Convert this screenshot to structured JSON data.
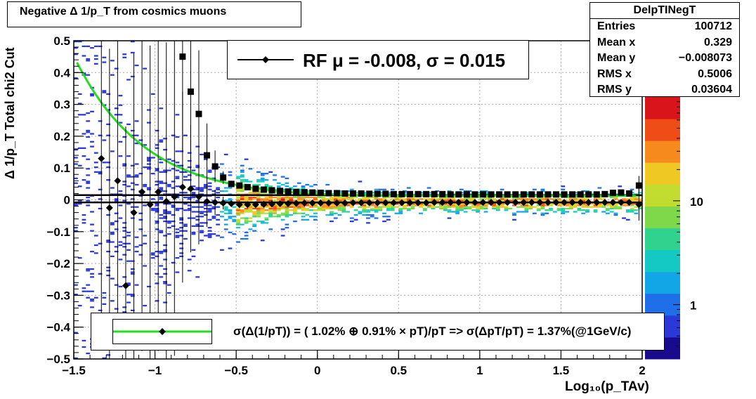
{
  "title_box": {
    "title": "Negative Δ 1/p_T  from cosmics muons"
  },
  "stats": {
    "name": "DelpTINegT",
    "rows": [
      {
        "label": "Entries",
        "value": "100712"
      },
      {
        "label": "Mean x",
        "value": "0.329"
      },
      {
        "label": "Mean y",
        "value": "−0.008073"
      },
      {
        "label": "RMS x",
        "value": "0.5006"
      },
      {
        "label": "RMS y",
        "value": "0.03604"
      }
    ]
  },
  "legend_top": {
    "text": "RF μ = -0.008, σ =   0.015"
  },
  "legend_bottom": {
    "text": "σ(Δ(1/pT)) = ( 1.02% ⊕  0.91% × pT)/pT => σ(ΔpT/pT) =  1.37%(@1GeV/c)"
  },
  "axes": {
    "xlabel": "Log₁₀(p_TAv)",
    "ylabel": "Δ 1/p_T  Total chi2 Cut",
    "x_ticks": [
      "−1.5",
      "−1",
      "−0.5",
      "0",
      "0.5",
      "1",
      "1.5",
      "2"
    ],
    "y_ticks": [
      "−0.5",
      "−0.4",
      "−0.3",
      "−0.2",
      "−0.1",
      "0",
      "0.1",
      "0.2",
      "0.3",
      "0.4",
      "0.5"
    ],
    "z_ticks": [
      "1",
      "10"
    ]
  },
  "colors": {
    "fit_curve": "#22dd22",
    "markers": "#000000",
    "legend_line": "#22dd22"
  },
  "chart_data": {
    "type": "heatmap",
    "xlim": [
      -1.5,
      2.0
    ],
    "ylim": [
      -0.5,
      0.5
    ],
    "zscale": "log",
    "z_range": [
      0.3,
      100
    ],
    "grid": true,
    "legend_placement": "top-center and bottom-center",
    "series": [
      {
        "name": "RF μ = -0.008, σ =   0.015",
        "kind": "points",
        "x": [
          -1.33,
          -1.28,
          -1.23,
          -1.18,
          -1.13,
          -1.08,
          -1.03,
          -0.98,
          -0.93,
          -0.88,
          -0.83,
          -0.78,
          -0.73,
          -0.68,
          -0.63,
          -0.58,
          -0.53,
          -0.48,
          -0.43,
          -0.38,
          -0.33,
          -0.28,
          -0.23,
          -0.18,
          -0.13,
          -0.08,
          -0.03,
          0.02,
          0.07,
          0.12,
          0.17,
          0.22,
          0.27,
          0.32,
          0.37,
          0.42,
          0.47,
          0.52,
          0.57,
          0.62,
          0.67,
          0.72,
          0.77,
          0.82,
          0.87,
          0.92,
          0.97,
          1.02,
          1.07,
          1.12,
          1.17,
          1.22,
          1.27,
          1.32,
          1.37,
          1.42,
          1.47,
          1.52,
          1.57,
          1.62,
          1.67,
          1.72,
          1.77,
          1.82,
          1.87,
          1.92,
          1.98
        ],
        "y": [
          0.13,
          -0.025,
          0.06,
          -0.27,
          -0.04,
          0.025,
          -0.015,
          0.025,
          -0.005,
          0.01,
          0.04,
          0.035,
          0.01,
          -0.005,
          -0.008,
          -0.01,
          -0.012,
          -0.015,
          -0.015,
          -0.015,
          -0.014,
          -0.013,
          -0.012,
          -0.012,
          -0.011,
          -0.01,
          -0.01,
          -0.01,
          -0.01,
          -0.01,
          -0.01,
          -0.009,
          -0.009,
          -0.009,
          -0.009,
          -0.009,
          -0.009,
          -0.009,
          -0.009,
          -0.009,
          -0.009,
          -0.008,
          -0.008,
          -0.008,
          -0.008,
          -0.008,
          -0.008,
          -0.008,
          -0.008,
          -0.008,
          -0.008,
          -0.008,
          -0.008,
          -0.008,
          -0.008,
          -0.008,
          -0.008,
          -0.008,
          -0.008,
          -0.008,
          -0.008,
          -0.008,
          -0.008,
          -0.008,
          -0.008,
          -0.008,
          -0.015
        ],
        "yerr": [
          0.5,
          0.5,
          0.5,
          0.5,
          0.5,
          0.5,
          0.5,
          0.5,
          0.5,
          0.5,
          0.3,
          0.2,
          0.15,
          0.08,
          0.04,
          0.02,
          0.01,
          0.008,
          0.006,
          0.005,
          0.004,
          0.003,
          0.003,
          0.002,
          0.002,
          0.002,
          0.002,
          0.002,
          0.002,
          0.002,
          0.002,
          0.002,
          0.002,
          0.002,
          0.002,
          0.002,
          0.002,
          0.002,
          0.002,
          0.002,
          0.002,
          0.002,
          0.002,
          0.002,
          0.002,
          0.002,
          0.002,
          0.002,
          0.002,
          0.002,
          0.002,
          0.002,
          0.002,
          0.002,
          0.002,
          0.002,
          0.002,
          0.002,
          0.002,
          0.002,
          0.002,
          0.002,
          0.002,
          0.002,
          0.002,
          0.002,
          0.05
        ]
      },
      {
        "name": "sigma",
        "kind": "squares",
        "x": [
          -0.83,
          -0.78,
          -0.73,
          -0.68,
          -0.63,
          -0.58,
          -0.53,
          -0.48,
          -0.43,
          -0.38,
          -0.33,
          -0.28,
          -0.23,
          -0.18,
          -0.13,
          -0.08,
          -0.03,
          0.02,
          0.07,
          0.12,
          0.17,
          0.22,
          0.27,
          0.32,
          0.37,
          0.42,
          0.47,
          0.52,
          0.57,
          0.62,
          0.67,
          0.72,
          0.77,
          0.82,
          0.87,
          0.92,
          0.97,
          1.02,
          1.07,
          1.12,
          1.17,
          1.22,
          1.27,
          1.32,
          1.37,
          1.42,
          1.47,
          1.52,
          1.57,
          1.62,
          1.67,
          1.72,
          1.77,
          1.82,
          1.87,
          1.92,
          1.98
        ],
        "y": [
          0.45,
          0.34,
          0.27,
          0.14,
          0.105,
          0.07,
          0.05,
          0.045,
          0.04,
          0.035,
          0.032,
          0.03,
          0.028,
          0.026,
          0.025,
          0.024,
          0.023,
          0.022,
          0.021,
          0.021,
          0.02,
          0.02,
          0.02,
          0.019,
          0.019,
          0.019,
          0.018,
          0.018,
          0.018,
          0.018,
          0.018,
          0.018,
          0.018,
          0.017,
          0.017,
          0.017,
          0.017,
          0.017,
          0.017,
          0.017,
          0.017,
          0.017,
          0.017,
          0.017,
          0.017,
          0.017,
          0.017,
          0.017,
          0.017,
          0.017,
          0.017,
          0.017,
          0.018,
          0.022,
          0.023,
          0.02,
          0.045
        ],
        "yerr": [
          0.3,
          0.25,
          0.2,
          0.1,
          0.05,
          0.02,
          0.01,
          0.005,
          0.004,
          0.003,
          0.002,
          0.002,
          0.002,
          0.002,
          0.002,
          0.002,
          0.002,
          0.002,
          0.002,
          0.002,
          0.002,
          0.002,
          0.002,
          0.002,
          0.002,
          0.002,
          0.002,
          0.002,
          0.002,
          0.002,
          0.002,
          0.002,
          0.002,
          0.002,
          0.002,
          0.002,
          0.002,
          0.002,
          0.002,
          0.002,
          0.002,
          0.002,
          0.002,
          0.002,
          0.002,
          0.002,
          0.002,
          0.002,
          0.002,
          0.002,
          0.002,
          0.002,
          0.002,
          0.002,
          0.002,
          0.002,
          0.03
        ]
      }
    ],
    "fit": {
      "form": "sqrt(a^2 + (b*pT)^2)/pT",
      "a": 0.0102,
      "b": 0.0091
    },
    "mean_line_y": -0.008,
    "sigma_line_y": 0.015
  }
}
